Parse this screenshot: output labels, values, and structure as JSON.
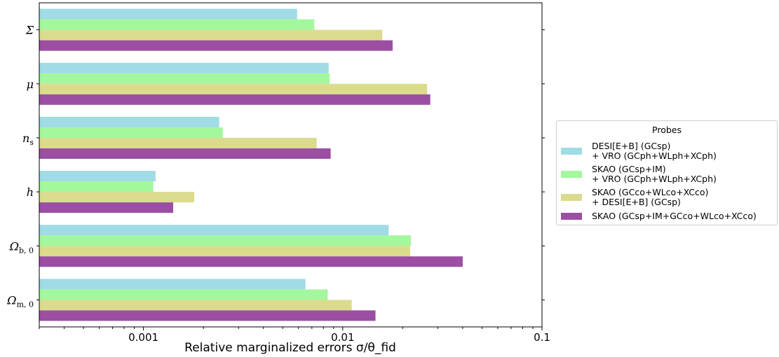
{
  "chart_data": {
    "type": "bar",
    "orientation": "horizontal",
    "title": "",
    "xlabel": "Relative marginalized errors σ/θ_fid",
    "ylabel": "",
    "x_scale": "log",
    "xlim": [
      0.0003,
      0.1
    ],
    "x_ticks": [
      0.001,
      0.01,
      0.1
    ],
    "x_tick_labels": [
      "0.001",
      "0.01",
      "0.1"
    ],
    "categories": [
      {
        "sym": "Σ",
        "sub": ""
      },
      {
        "sym": "μ",
        "sub": ""
      },
      {
        "sym": "n",
        "sub": "s"
      },
      {
        "sym": "h",
        "sub": ""
      },
      {
        "sym": "Ω",
        "sub": "b, 0"
      },
      {
        "sym": "Ω",
        "sub": "m, 0"
      }
    ],
    "legend_title": "Probes",
    "legend_position": "right, outside plot",
    "series": [
      {
        "name": "DESI[E+B] (GCsp)\n+ VRO (GCph+WLph+XCph)",
        "color": "#a0dbe6",
        "values": [
          0.0059,
          0.0085,
          0.0024,
          0.00115,
          0.017,
          0.0065
        ]
      },
      {
        "name": "SKAO (GCsp+IM)\n+ VRO (GCph+WLph+XCph)",
        "color": "#a3f79d",
        "values": [
          0.0072,
          0.0086,
          0.0025,
          0.00112,
          0.022,
          0.0084
        ]
      },
      {
        "name": "SKAO (GCco+WLco+XCco)\n+ DESI[E+B] (GCsp)",
        "color": "#dbdb8d",
        "values": [
          0.0158,
          0.0265,
          0.0074,
          0.0018,
          0.0218,
          0.0111
        ]
      },
      {
        "name": "SKAO (GCsp+IM+GCco+WLco+XCco)",
        "color": "#9a4fa3",
        "values": [
          0.0178,
          0.0275,
          0.0087,
          0.00141,
          0.04,
          0.0146
        ]
      }
    ]
  }
}
